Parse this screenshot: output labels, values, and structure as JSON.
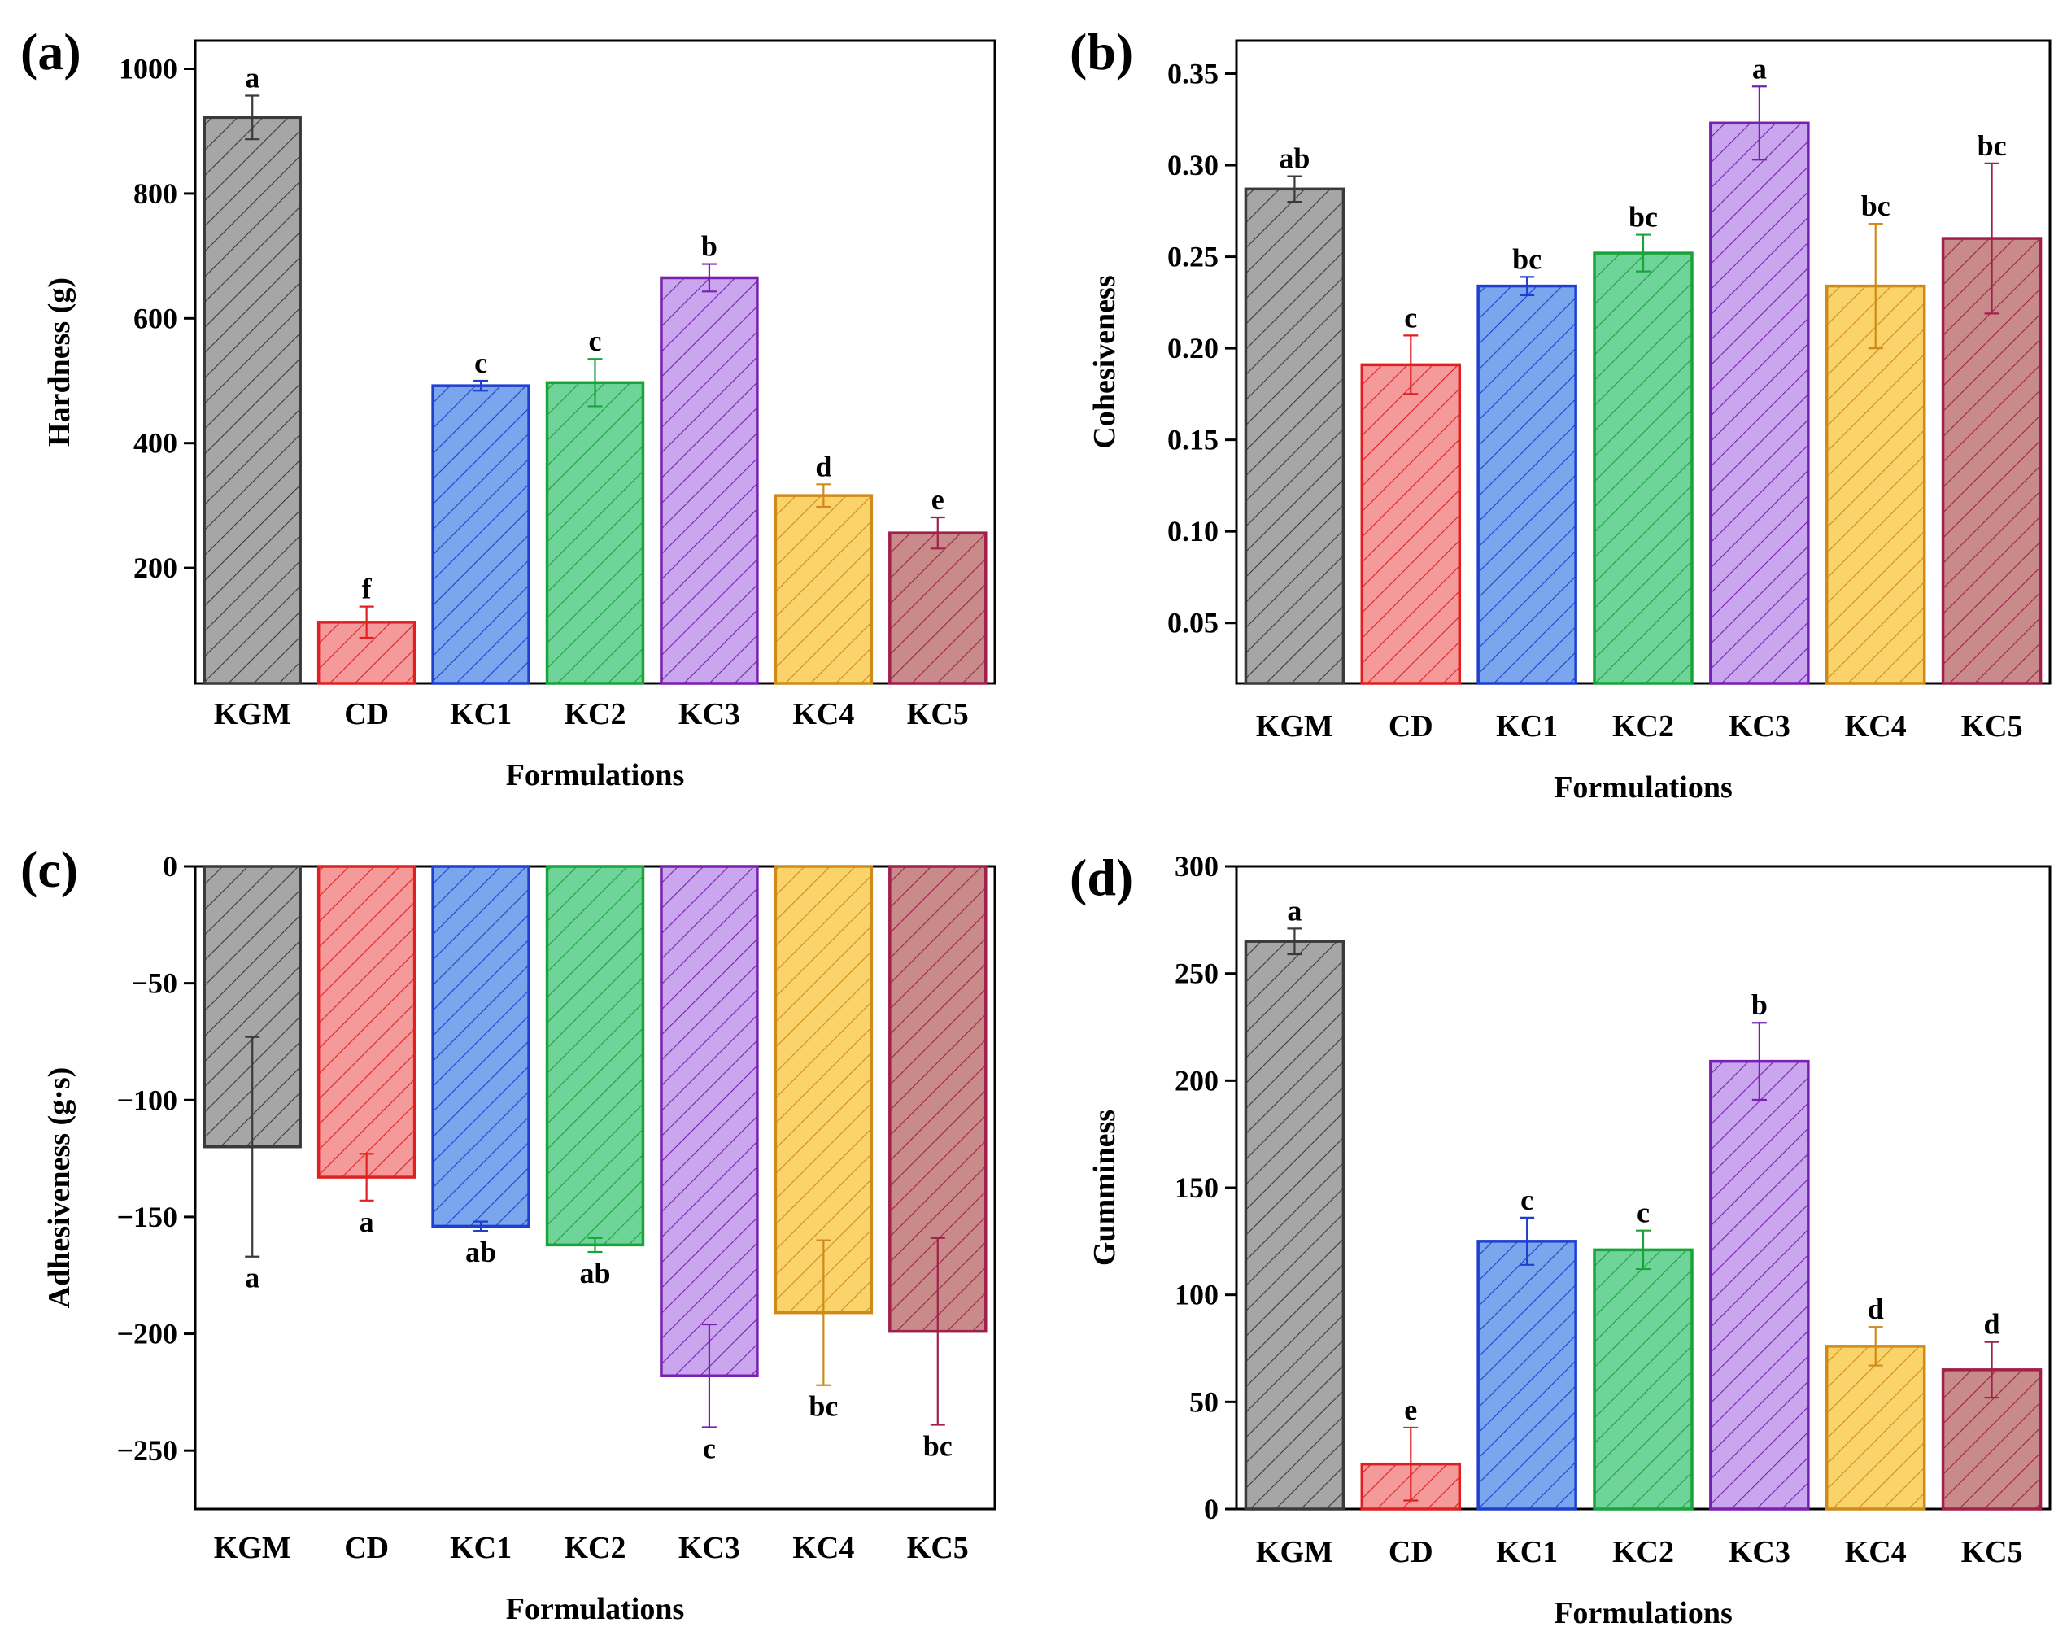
{
  "chart_data": [
    {
      "panel": "(a)",
      "type": "bar",
      "categories": [
        "KGM",
        "CD",
        "KC1",
        "KC2",
        "KC3",
        "KC4",
        "KC5"
      ],
      "values": [
        922,
        113,
        492,
        497,
        665,
        316,
        256
      ],
      "errors": [
        35,
        25,
        8,
        38,
        22,
        18,
        25
      ],
      "letters": [
        "a",
        "f",
        "c",
        "c",
        "b",
        "d",
        "e"
      ],
      "xlabel": "Formulations",
      "ylabel": "Hardness (g)",
      "ylim": [
        15,
        1045
      ],
      "yticks": [
        200,
        400,
        600,
        800,
        1000
      ],
      "ytick_labels": [
        "200",
        "400",
        "600",
        "800",
        "1000"
      ]
    },
    {
      "panel": "(b)",
      "type": "bar",
      "categories": [
        "KGM",
        "CD",
        "KC1",
        "KC2",
        "KC3",
        "KC4",
        "KC5"
      ],
      "values": [
        0.287,
        0.191,
        0.234,
        0.252,
        0.323,
        0.234,
        0.26
      ],
      "errors": [
        0.007,
        0.016,
        0.005,
        0.01,
        0.02,
        0.034,
        0.041
      ],
      "letters": [
        "ab",
        "c",
        "bc",
        "bc",
        "a",
        "bc",
        "bc"
      ],
      "xlabel": "Formulations",
      "ylabel": "Cohesiveness",
      "ylim": [
        0.017,
        0.368
      ],
      "yticks": [
        0.05,
        0.1,
        0.15,
        0.2,
        0.25,
        0.3,
        0.35
      ],
      "ytick_labels": [
        "0.05",
        "0.10",
        "0.15",
        "0.20",
        "0.25",
        "0.30",
        "0.35"
      ]
    },
    {
      "panel": "(c)",
      "type": "bar",
      "categories": [
        "KGM",
        "CD",
        "KC1",
        "KC2",
        "KC3",
        "KC4",
        "KC5"
      ],
      "values": [
        -120,
        -133,
        -154,
        -162,
        -218,
        -191,
        -199
      ],
      "errors": [
        47,
        10,
        2,
        3,
        22,
        31,
        40
      ],
      "letters": [
        "a",
        "a",
        "ab",
        "ab",
        "c",
        "bc",
        "bc"
      ],
      "xlabel": "Formulations",
      "ylabel": "Adhesiveness (g·s)",
      "ylim": [
        -275,
        0
      ],
      "yticks": [
        0,
        -50,
        -100,
        -150,
        -200,
        -250
      ],
      "ytick_labels": [
        "0",
        "−50",
        "−100",
        "−150",
        "−200",
        "−250"
      ]
    },
    {
      "panel": "(d)",
      "type": "bar",
      "categories": [
        "KGM",
        "CD",
        "KC1",
        "KC2",
        "KC3",
        "KC4",
        "KC5"
      ],
      "values": [
        265,
        21,
        125,
        121,
        209,
        76,
        65
      ],
      "errors": [
        6,
        17,
        11,
        9,
        18,
        9,
        13
      ],
      "letters": [
        "a",
        "e",
        "c",
        "c",
        "b",
        "d",
        "d"
      ],
      "xlabel": "Formulations",
      "ylabel": "Gumminess",
      "ylim": [
        0,
        300
      ],
      "yticks": [
        0,
        50,
        100,
        150,
        200,
        250,
        300
      ],
      "ytick_labels": [
        "0",
        "50",
        "100",
        "150",
        "200",
        "250",
        "300"
      ]
    }
  ],
  "series_colors": [
    {
      "fill": "#a6a6a6",
      "stroke": "#3a3a3a"
    },
    {
      "fill": "#f49a9a",
      "stroke": "#e02020"
    },
    {
      "fill": "#7aa6ee",
      "stroke": "#1f3fcf"
    },
    {
      "fill": "#6fd49a",
      "stroke": "#1aa33a"
    },
    {
      "fill": "#c9a6ee",
      "stroke": "#7a1fb0"
    },
    {
      "fill": "#fad46a",
      "stroke": "#d08a1a"
    },
    {
      "fill": "#c98a8a",
      "stroke": "#a0204a"
    }
  ]
}
